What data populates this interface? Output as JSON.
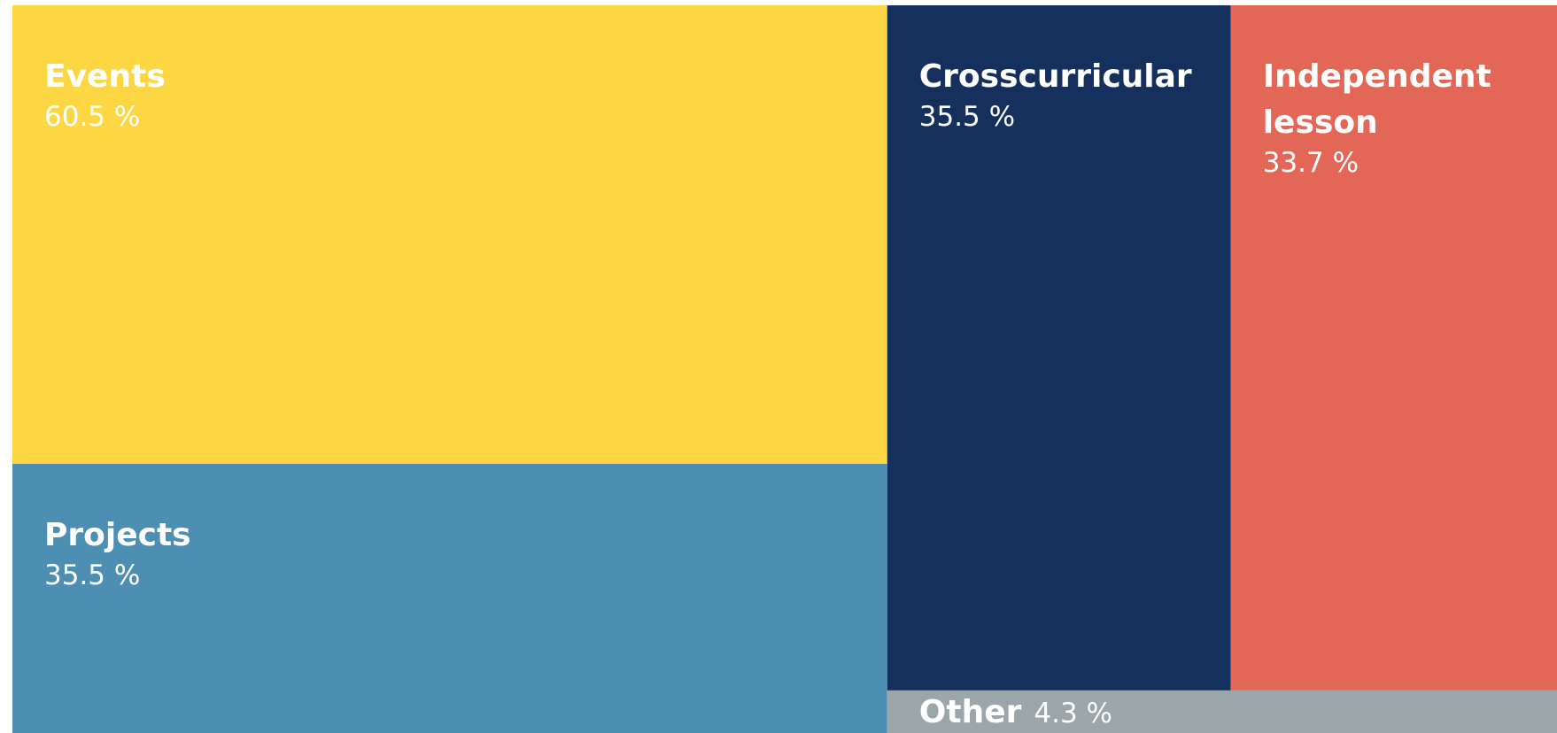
{
  "chart_data": {
    "type": "treemap",
    "categories": [
      "Events",
      "Projects",
      "Crosscurricular",
      "Independent lesson",
      "Other"
    ],
    "values": [
      60.5,
      35.5,
      35.5,
      33.7,
      4.3
    ],
    "value_labels": [
      "60.5 %",
      "35.5 %",
      "35.5 %",
      "33.7 %",
      "4.3 %"
    ],
    "colors": [
      "#fdd643",
      "#4d8fb3",
      "#16305e",
      "#e36757",
      "#9aa6a9"
    ]
  }
}
